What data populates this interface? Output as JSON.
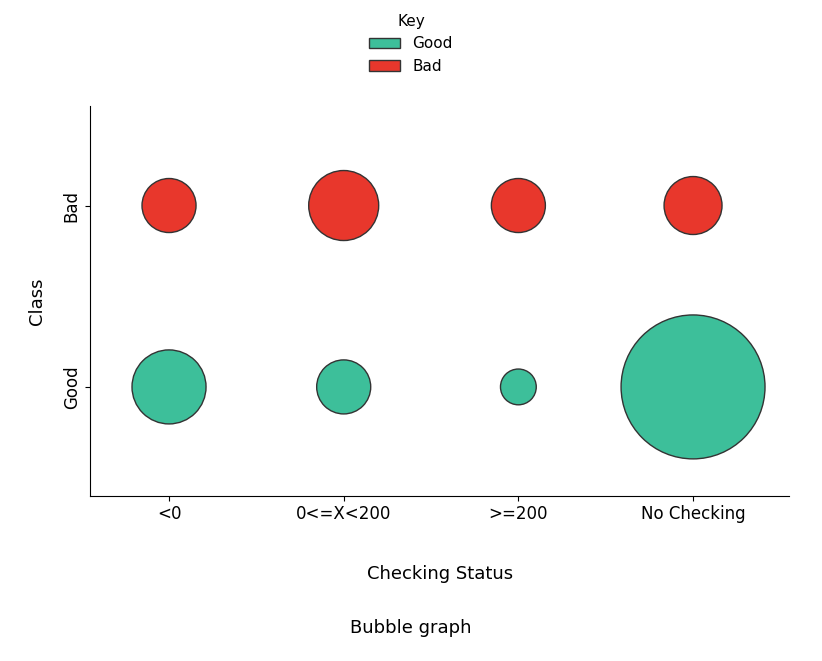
{
  "chart_data": {
    "type": "bubble",
    "title": "Bubble graph",
    "x_label": "Checking Status",
    "y_label": "Class",
    "legend_title": "Key",
    "legend": "upper center",
    "categories": [
      "<0",
      "0<=X<200",
      ">=200",
      "No Checking"
    ],
    "y_categories": [
      "Good",
      "Bad"
    ],
    "series": [
      {
        "name": "Good",
        "color": "#3dbf9a",
        "sizes": [
          1370,
          730,
          320,
          5180
        ]
      },
      {
        "name": "Bad",
        "color": "#e8372c",
        "sizes": [
          730,
          1225,
          730,
          840
        ]
      }
    ]
  }
}
